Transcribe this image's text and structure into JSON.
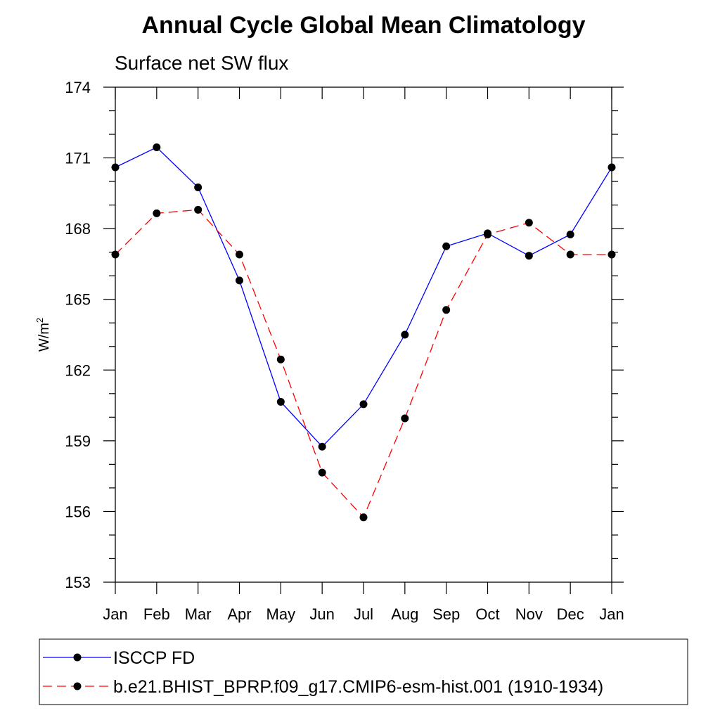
{
  "chart_data": {
    "type": "line",
    "title": "Annual Cycle Global Mean Climatology",
    "subtitle": "Surface net SW flux",
    "ylabel": "W/m",
    "ylabel_sup": "2",
    "xlabel": "",
    "categories": [
      "Jan",
      "Feb",
      "Mar",
      "Apr",
      "May",
      "Jun",
      "Jul",
      "Aug",
      "Sep",
      "Oct",
      "Nov",
      "Dec",
      "Jan"
    ],
    "ylim": [
      153,
      174
    ],
    "yticks": [
      "153",
      "156",
      "159",
      "162",
      "165",
      "168",
      "171",
      "174"
    ],
    "series": [
      {
        "name": "ISCCP FD",
        "color": "#0000ff",
        "dash": "solid",
        "marker": "filled-circle",
        "values": [
          170.6,
          171.45,
          169.75,
          165.8,
          160.65,
          158.75,
          160.55,
          163.5,
          167.25,
          167.8,
          166.85,
          167.75,
          170.6
        ]
      },
      {
        "name": "b.e21.BHIST_BPRP.f09_g17.CMIP6-esm-hist.001 (1910-1934)",
        "color": "#ff0000",
        "dash": "dashed",
        "marker": "filled-circle",
        "values": [
          166.9,
          168.65,
          168.8,
          166.9,
          162.45,
          157.65,
          155.75,
          159.95,
          164.55,
          167.75,
          168.25,
          166.9,
          166.9
        ]
      }
    ],
    "grid": false,
    "legend_position": "bottom"
  }
}
